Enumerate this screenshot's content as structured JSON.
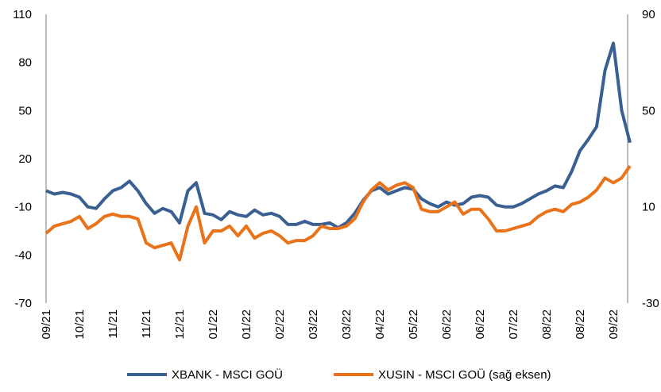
{
  "chart_data": {
    "type": "line",
    "categories": [
      "09/21",
      null,
      null,
      null,
      "10/21",
      null,
      null,
      null,
      "11/21",
      null,
      null,
      null,
      "11/21",
      null,
      null,
      null,
      "12/21",
      null,
      null,
      null,
      "01/22",
      null,
      null,
      null,
      "01/22",
      null,
      null,
      null,
      "02/22",
      null,
      null,
      null,
      "03/22",
      null,
      null,
      null,
      "03/22",
      null,
      null,
      null,
      "04/22",
      null,
      null,
      null,
      "05/22",
      null,
      null,
      null,
      "06/22",
      null,
      null,
      null,
      "06/22",
      null,
      null,
      null,
      "07/22",
      null,
      null,
      null,
      "08/22",
      null,
      null,
      null,
      "08/22",
      null,
      null,
      null,
      "09/22",
      null,
      null
    ],
    "series": [
      {
        "name": "XBANK - MSCI GOÜ",
        "color": "#3a5f91",
        "axis": "y",
        "values": [
          0,
          -2,
          -1,
          -2,
          -4,
          -10,
          -11,
          -5,
          0,
          2,
          6,
          0,
          -8,
          -14,
          -11,
          -13,
          -20,
          0,
          5,
          -14,
          -15,
          -18,
          -13,
          -15,
          -16,
          -12,
          -15,
          -14,
          -16,
          -21,
          -21,
          -19,
          -21,
          -21,
          -20,
          -23,
          -20,
          -14,
          -6,
          0,
          2,
          -2,
          0,
          2,
          1,
          -5,
          -8,
          -10,
          -7,
          -9,
          -8,
          -4,
          -3,
          -4,
          -9,
          -10,
          -10,
          -8,
          -5,
          -2,
          0,
          3,
          2,
          12,
          25,
          32,
          40,
          75,
          92,
          50,
          30
        ]
      },
      {
        "name": "XUSIN - MSCI GOÜ (sağ eksen)",
        "color": "#e8731a",
        "axis": "y2",
        "values": [
          -1,
          2,
          3,
          4,
          6,
          1,
          3,
          6,
          7,
          6,
          6,
          5,
          -5,
          -7,
          -6,
          -5,
          -12,
          2,
          10,
          -5,
          0,
          0,
          2,
          -2,
          2,
          -3,
          -1,
          0,
          -2,
          -5,
          -4,
          -4,
          -2,
          2,
          1,
          1,
          2,
          5,
          12,
          17,
          20,
          17,
          19,
          20,
          18,
          9,
          8,
          8,
          10,
          12,
          7,
          9,
          9,
          5,
          0,
          0,
          1,
          2,
          3,
          6,
          8,
          9,
          8,
          11,
          12,
          14,
          17,
          22,
          20,
          22,
          27
        ]
      }
    ],
    "ylim": [
      -70,
      110
    ],
    "yticks": [
      110,
      80,
      50,
      20,
      -10,
      -40,
      -70
    ],
    "y2lim": [
      -30,
      90
    ],
    "y2ticks": [
      90,
      50,
      10,
      -30
    ],
    "legend": "bottom"
  }
}
